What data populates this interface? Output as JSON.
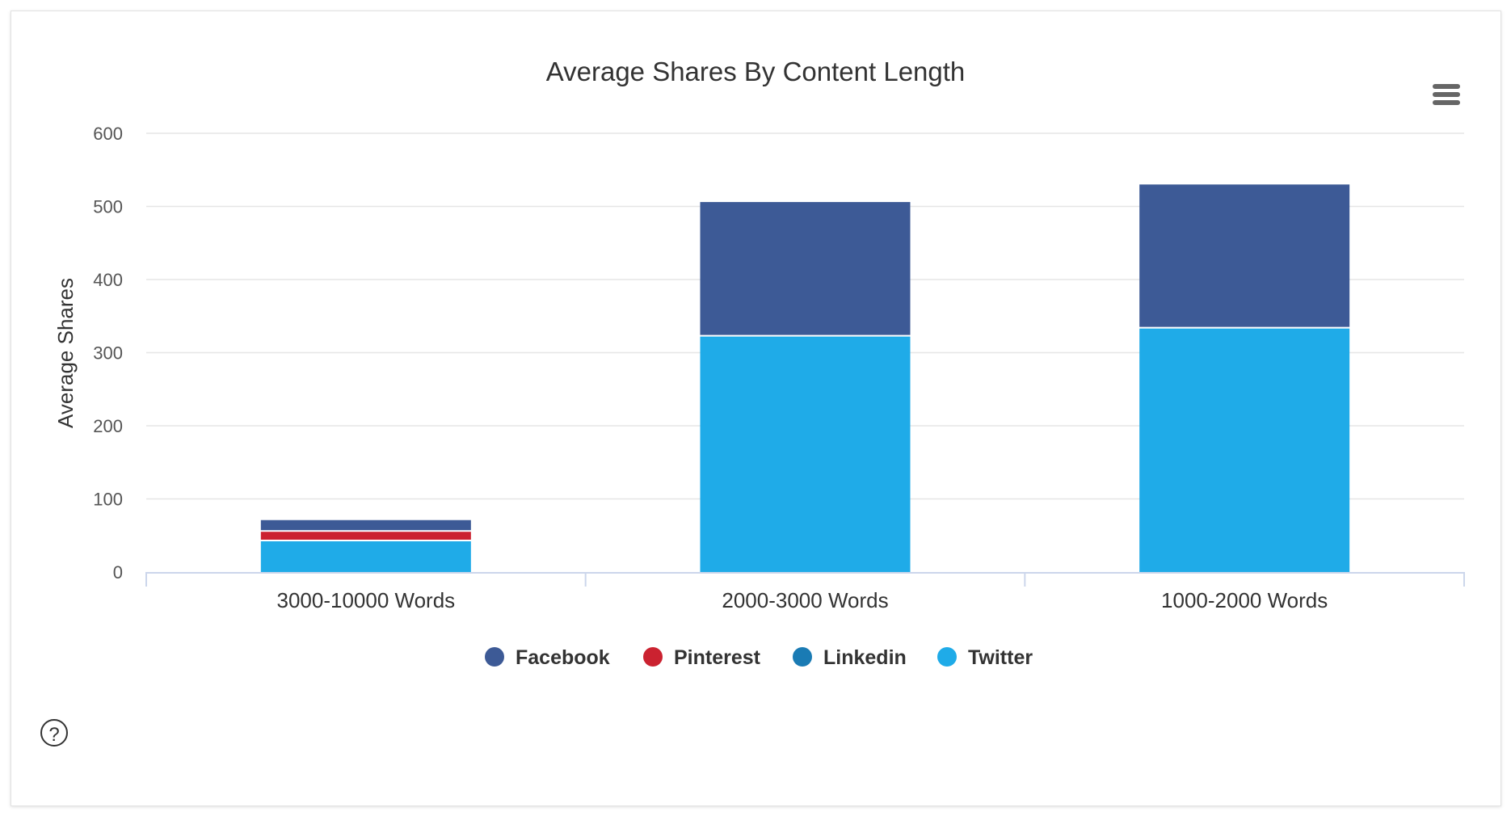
{
  "chart_data": {
    "type": "bar",
    "stacked": true,
    "title": "Average Shares By Content Length",
    "xlabel": "",
    "ylabel": "Average Shares",
    "ylim": [
      0,
      600
    ],
    "yticks": [
      0,
      100,
      200,
      300,
      400,
      500,
      600
    ],
    "grid": true,
    "legend_position": "bottom-center",
    "categories": [
      "3000-10000 Words",
      "2000-3000 Words",
      "1000-2000 Words"
    ],
    "series": [
      {
        "name": "Facebook",
        "color": "#3d5a96",
        "values": [
          16,
          184,
          197
        ]
      },
      {
        "name": "Pinterest",
        "color": "#cb2230",
        "values": [
          13,
          0,
          0
        ]
      },
      {
        "name": "Linkedin",
        "color": "#1a7bb4",
        "values": [
          0,
          0,
          0
        ]
      },
      {
        "name": "Twitter",
        "color": "#1fabe8",
        "values": [
          42,
          322,
          333
        ]
      }
    ]
  },
  "icons": {
    "menu": "hamburger-menu-icon",
    "help": "question-circle-icon"
  }
}
